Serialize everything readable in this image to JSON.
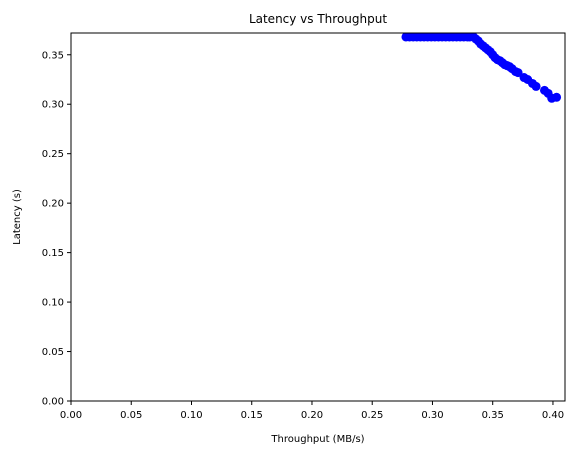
{
  "chart_data": {
    "type": "scatter",
    "title": "Latency vs Throughput",
    "xlabel": "Throughput (MB/s)",
    "ylabel": "Latency (s)",
    "xlim": [
      0,
      0.41
    ],
    "ylim": [
      0,
      0.372
    ],
    "xticks": [
      "0.00",
      "0.05",
      "0.10",
      "0.15",
      "0.20",
      "0.25",
      "0.30",
      "0.35",
      "0.40"
    ],
    "yticks": [
      "0.00",
      "0.05",
      "0.10",
      "0.15",
      "0.20",
      "0.25",
      "0.30",
      "0.35"
    ],
    "grid": false,
    "marker_color": "#0000ff",
    "series": [
      {
        "x": [
          0.278,
          0.281,
          0.284,
          0.287,
          0.29,
          0.293,
          0.296,
          0.299,
          0.302,
          0.305,
          0.308,
          0.311,
          0.314,
          0.317,
          0.32,
          0.323,
          0.326,
          0.329,
          0.331,
          0.334,
          0.336,
          0.338,
          0.34,
          0.342,
          0.344,
          0.346,
          0.348,
          0.35,
          0.352,
          0.354,
          0.356,
          0.358,
          0.36,
          0.362,
          0.364,
          0.366,
          0.369,
          0.371,
          0.376,
          0.379,
          0.383,
          0.386,
          0.393,
          0.396,
          0.399,
          0.403
        ],
        "y": [
          0.368,
          0.368,
          0.368,
          0.368,
          0.368,
          0.368,
          0.368,
          0.368,
          0.368,
          0.368,
          0.368,
          0.368,
          0.368,
          0.368,
          0.368,
          0.368,
          0.368,
          0.368,
          0.368,
          0.368,
          0.366,
          0.364,
          0.361,
          0.359,
          0.357,
          0.355,
          0.353,
          0.35,
          0.347,
          0.345,
          0.344,
          0.342,
          0.34,
          0.339,
          0.338,
          0.336,
          0.333,
          0.332,
          0.327,
          0.325,
          0.321,
          0.318,
          0.314,
          0.311,
          0.306,
          0.307
        ]
      }
    ]
  }
}
